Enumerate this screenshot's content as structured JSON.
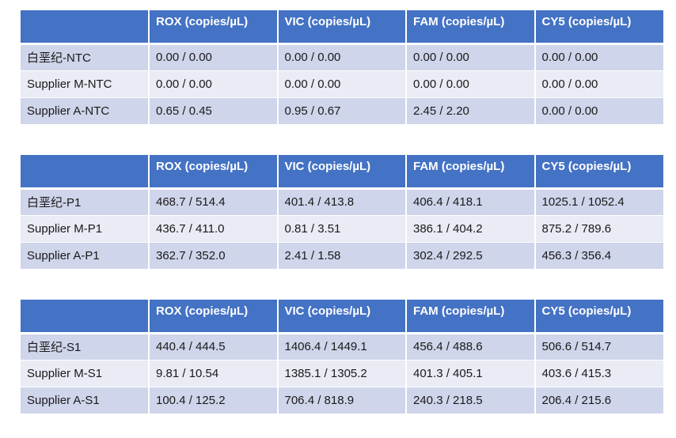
{
  "headers": [
    "",
    "ROX (copies/µL)",
    "VIC (copies/µL)",
    "FAM (copies/µL)",
    "CY5 (copies/µL)"
  ],
  "tables": [
    {
      "rows": [
        [
          "白垩纪-NTC",
          "0.00 / 0.00",
          "0.00 / 0.00",
          "0.00 / 0.00",
          "0.00 / 0.00"
        ],
        [
          "Supplier M-NTC",
          "0.00 / 0.00",
          "0.00 / 0.00",
          "0.00 / 0.00",
          "0.00 / 0.00"
        ],
        [
          "Supplier A-NTC",
          "0.65 / 0.45",
          "0.95 / 0.67",
          "2.45 / 2.20",
          "0.00 / 0.00"
        ]
      ]
    },
    {
      "rows": [
        [
          "白垩纪-P1",
          "468.7 / 514.4",
          "401.4 / 413.8",
          "406.4 / 418.1",
          "1025.1 / 1052.4"
        ],
        [
          "Supplier M-P1",
          "436.7 / 411.0",
          "0.81 / 3.51",
          "386.1 / 404.2",
          "875.2 / 789.6"
        ],
        [
          "Supplier A-P1",
          "362.7 / 352.0",
          "2.41 / 1.58",
          "302.4 / 292.5",
          "456.3 / 356.4"
        ]
      ]
    },
    {
      "rows": [
        [
          "白垩纪-S1",
          "440.4 / 444.5",
          "1406.4 / 1449.1",
          "456.4 / 488.6",
          "506.6 / 514.7"
        ],
        [
          "Supplier M-S1",
          "9.81 / 10.54",
          "1385.1 / 1305.2",
          "401.3 / 405.1",
          "403.6 / 415.3"
        ],
        [
          "Supplier A-S1",
          "100.4 / 125.2",
          "706.4 / 818.9",
          "240.3 / 218.5",
          "206.4 / 215.6"
        ]
      ]
    }
  ],
  "colors": {
    "header": "#4472c4",
    "row_odd": "#cfd5ea",
    "row_even": "#e9ebf5"
  }
}
